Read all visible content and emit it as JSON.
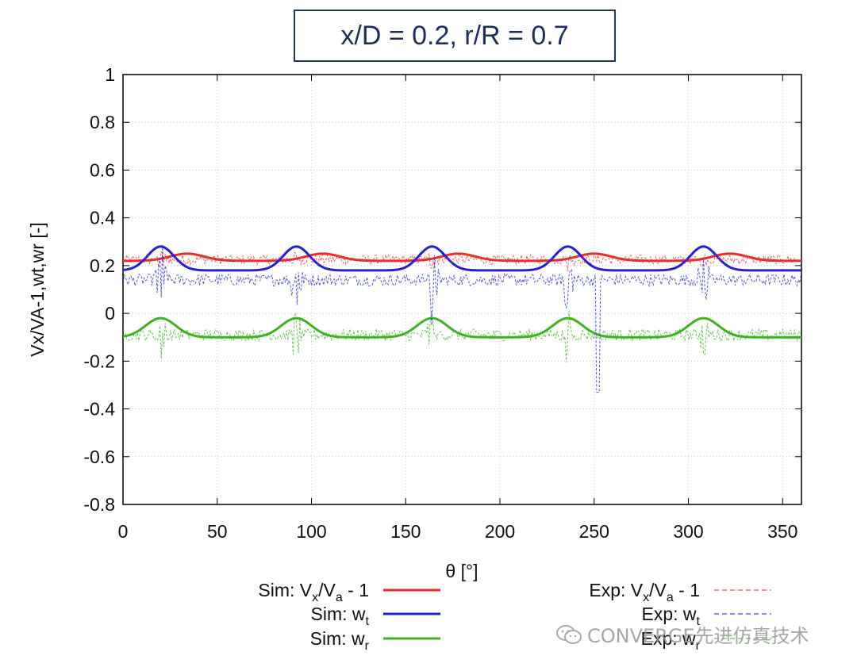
{
  "title": "x/D = 0.2, r/R = 0.7",
  "watermark": "CONVERGE先进仿真技术",
  "chart_data": {
    "type": "line",
    "xlabel": "θ [°]",
    "ylabel": "Vx/VA-1,wt,wr [-]",
    "xlim": [
      0,
      360
    ],
    "ylim": [
      -0.8,
      1
    ],
    "xticks": [
      0,
      50,
      100,
      150,
      200,
      250,
      300,
      350
    ],
    "yticks": [
      -0.8,
      -0.6,
      -0.4,
      -0.2,
      0,
      0.2,
      0.4,
      0.6,
      0.8,
      1
    ],
    "ytick_labels": [
      "-0.8",
      "-0.6",
      "-0.4",
      "-0.2",
      "0",
      "0.2",
      "0.4",
      "0.6",
      "0.8",
      "1"
    ],
    "grid": true,
    "blade_peaks_deg": [
      20,
      92,
      164,
      236,
      308
    ],
    "series": [
      {
        "name": "Sim: Vx/Va - 1",
        "style": "solid",
        "color": "#e8302a",
        "base": 0.22,
        "amp": 0.03,
        "peak_offset": 14,
        "width": 9,
        "peak2_amp": 0.03
      },
      {
        "name": "Sim: wt",
        "style": "solid",
        "color": "#2020e0",
        "base": 0.18,
        "amp": 0.1,
        "peak_offset": 0,
        "width": 7
      },
      {
        "name": "Sim: wr",
        "style": "solid",
        "color": "#3cb521",
        "base": -0.1,
        "amp": 0.08,
        "peak_offset": 0,
        "width": 8
      },
      {
        "name": "Exp: Vx/Va - 1",
        "style": "dashed",
        "color": "#e8302a",
        "base": 0.225,
        "noise": 0.02,
        "spike": 0.04
      },
      {
        "name": "Exp: wt",
        "style": "dashed",
        "color": "#2020e0",
        "base": 0.14,
        "noise": 0.025,
        "spike": 0.2,
        "extra_spike": {
          "x": 252,
          "low": -0.33
        }
      },
      {
        "name": "Exp: wr",
        "style": "dashed",
        "color": "#3cb521",
        "base": -0.09,
        "noise": 0.025,
        "spike": 0.12
      }
    ],
    "legend": {
      "left": [
        {
          "label_main": "Sim: V",
          "sub1": "x",
          "mid": "/V",
          "sub2": "a",
          "tail": " - 1"
        },
        {
          "label_main": "Sim: w",
          "sub1": "t"
        },
        {
          "label_main": "Sim: w",
          "sub1": "r"
        }
      ],
      "right": [
        {
          "label_main": "Exp: V",
          "sub1": "x",
          "mid": "/V",
          "sub2": "a",
          "tail": " - 1"
        },
        {
          "label_main": "Exp: w",
          "sub1": "t"
        },
        {
          "label_main": "Exp: w",
          "sub1": "r"
        }
      ]
    }
  }
}
